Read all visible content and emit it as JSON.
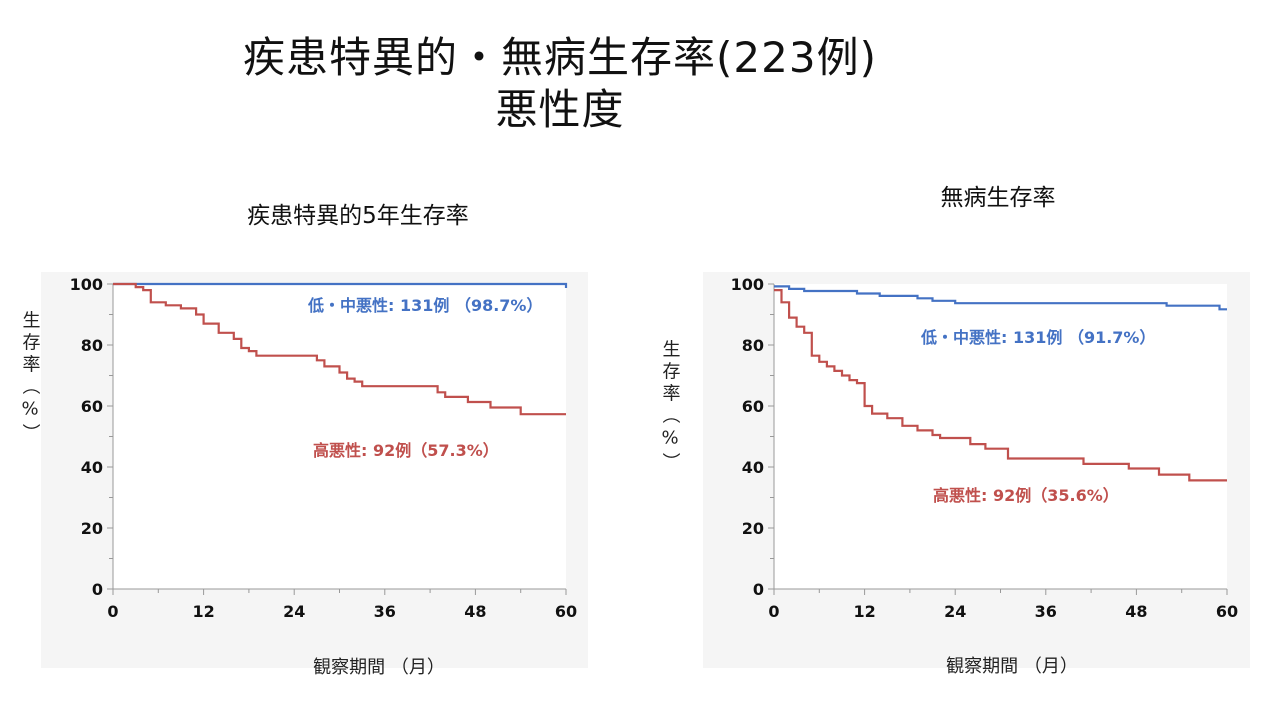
{
  "slide": {
    "title_line1": "疾患特異的・無病生存率(223例)",
    "title_line2": "悪性度"
  },
  "colors": {
    "low": "#4472C4",
    "high": "#C0504D",
    "plot_bg": "#F5F5F5",
    "axis": "#999999"
  },
  "chart_data": [
    {
      "type": "line",
      "title": "疾患特異的5年生存率",
      "xlabel": "観察期間 （月）",
      "ylabel": "生存率（%）",
      "xlim": [
        0,
        60
      ],
      "ylim": [
        0,
        100
      ],
      "x_ticks": [
        0,
        12,
        24,
        36,
        48,
        60
      ],
      "y_ticks": [
        0,
        20,
        40,
        60,
        80,
        100
      ],
      "step": true,
      "grid": false,
      "series": [
        {
          "name": "低・中悪性",
          "label": "低・中悪性: 131例 （98.7%）",
          "color": "#4472C4",
          "points": [
            [
              0,
              100
            ],
            [
              60,
              100
            ],
            [
              60,
              98.7
            ]
          ]
        },
        {
          "name": "高悪性",
          "label": "高悪性: 92例（57.3%）",
          "color": "#C0504D",
          "points": [
            [
              0,
              100
            ],
            [
              3,
              100
            ],
            [
              3,
              99
            ],
            [
              4,
              99
            ],
            [
              4,
              98
            ],
            [
              5,
              98
            ],
            [
              5,
              94
            ],
            [
              7,
              94
            ],
            [
              7,
              93
            ],
            [
              9,
              93
            ],
            [
              9,
              92
            ],
            [
              11,
              92
            ],
            [
              11,
              90
            ],
            [
              12,
              90
            ],
            [
              12,
              87
            ],
            [
              14,
              87
            ],
            [
              14,
              84
            ],
            [
              16,
              84
            ],
            [
              16,
              82
            ],
            [
              17,
              82
            ],
            [
              17,
              79
            ],
            [
              18,
              79
            ],
            [
              18,
              78
            ],
            [
              19,
              78
            ],
            [
              19,
              76.5
            ],
            [
              27,
              76.5
            ],
            [
              27,
              75
            ],
            [
              28,
              75
            ],
            [
              28,
              73
            ],
            [
              30,
              73
            ],
            [
              30,
              71
            ],
            [
              31,
              71
            ],
            [
              31,
              69
            ],
            [
              32,
              69
            ],
            [
              32,
              68
            ],
            [
              33,
              68
            ],
            [
              33,
              66.5
            ],
            [
              43,
              66.5
            ],
            [
              43,
              64.5
            ],
            [
              44,
              64.5
            ],
            [
              44,
              63
            ],
            [
              47,
              63
            ],
            [
              47,
              61.3
            ],
            [
              50,
              61.3
            ],
            [
              50,
              59.5
            ],
            [
              54,
              59.5
            ],
            [
              54,
              57.3
            ],
            [
              60,
              57.3
            ]
          ]
        }
      ]
    },
    {
      "type": "line",
      "title": "無病生存率",
      "xlabel": "観察期間 （月）",
      "ylabel": "生存率（%）",
      "xlim": [
        0,
        60
      ],
      "ylim": [
        0,
        100
      ],
      "x_ticks": [
        0,
        12,
        24,
        36,
        48,
        60
      ],
      "y_ticks": [
        0,
        20,
        40,
        60,
        80,
        100
      ],
      "step": true,
      "grid": false,
      "series": [
        {
          "name": "低・中悪性",
          "label": "低・中悪性: 131例 （91.7%）",
          "color": "#4472C4",
          "points": [
            [
              0,
              99.2
            ],
            [
              2,
              99.2
            ],
            [
              2,
              98.4
            ],
            [
              4,
              98.4
            ],
            [
              4,
              97.7
            ],
            [
              11,
              97.7
            ],
            [
              11,
              96.9
            ],
            [
              14,
              96.9
            ],
            [
              14,
              96.1
            ],
            [
              19,
              96.1
            ],
            [
              19,
              95.3
            ],
            [
              21,
              95.3
            ],
            [
              21,
              94.5
            ],
            [
              24,
              94.5
            ],
            [
              24,
              93.7
            ],
            [
              52,
              93.7
            ],
            [
              52,
              92.9
            ],
            [
              59,
              92.9
            ],
            [
              59,
              91.7
            ],
            [
              60,
              91.7
            ]
          ]
        },
        {
          "name": "高悪性",
          "label": "高悪性: 92例（35.6%）",
          "color": "#C0504D",
          "points": [
            [
              0,
              98
            ],
            [
              1,
              98
            ],
            [
              1,
              94
            ],
            [
              2,
              94
            ],
            [
              2,
              89
            ],
            [
              3,
              89
            ],
            [
              3,
              86
            ],
            [
              4,
              86
            ],
            [
              4,
              84
            ],
            [
              5,
              84
            ],
            [
              5,
              76.5
            ],
            [
              6,
              76.5
            ],
            [
              6,
              74.5
            ],
            [
              7,
              74.5
            ],
            [
              7,
              73
            ],
            [
              8,
              73
            ],
            [
              8,
              71.5
            ],
            [
              9,
              71.5
            ],
            [
              9,
              70
            ],
            [
              10,
              70
            ],
            [
              10,
              68.5
            ],
            [
              11,
              68.5
            ],
            [
              11,
              67.5
            ],
            [
              12,
              67.5
            ],
            [
              12,
              60
            ],
            [
              13,
              60
            ],
            [
              13,
              57.5
            ],
            [
              15,
              57.5
            ],
            [
              15,
              56
            ],
            [
              17,
              56
            ],
            [
              17,
              53.5
            ],
            [
              19,
              53.5
            ],
            [
              19,
              52
            ],
            [
              21,
              52
            ],
            [
              21,
              50.5
            ],
            [
              22,
              50.5
            ],
            [
              22,
              49.5
            ],
            [
              26,
              49.5
            ],
            [
              26,
              47.5
            ],
            [
              28,
              47.5
            ],
            [
              28,
              46
            ],
            [
              31,
              46
            ],
            [
              31,
              42.8
            ],
            [
              41,
              42.8
            ],
            [
              41,
              41
            ],
            [
              47,
              41
            ],
            [
              47,
              39.5
            ],
            [
              51,
              39.5
            ],
            [
              51,
              37.5
            ],
            [
              55,
              37.5
            ],
            [
              55,
              35.6
            ],
            [
              60,
              35.6
            ]
          ]
        }
      ]
    }
  ]
}
